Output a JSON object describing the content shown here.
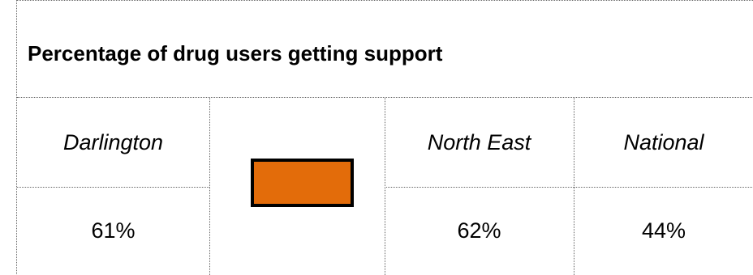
{
  "title": "Percentage of drug users getting support",
  "columns": [
    {
      "heading": "Darlington",
      "value": "61%"
    },
    {
      "heading": "North East",
      "value": "62%"
    },
    {
      "heading": "National",
      "value": "44%"
    }
  ],
  "rag_indicator": {
    "status": "amber",
    "color": "#e36c0a"
  }
}
